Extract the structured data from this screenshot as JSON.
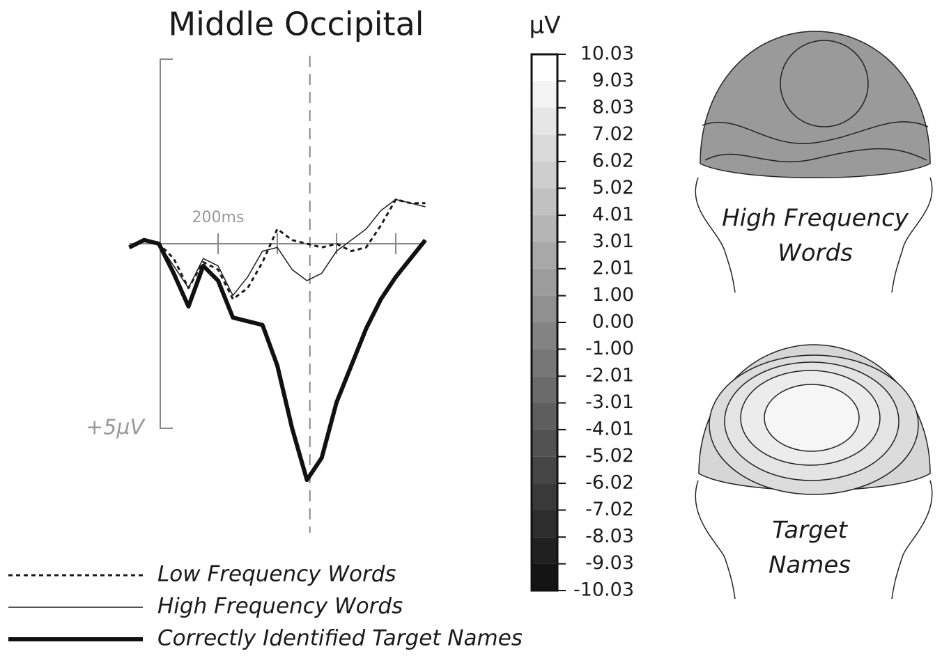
{
  "chart_data": [
    {
      "type": "line",
      "title": "Middle Occipital",
      "x": [
        -100,
        -50,
        0,
        50,
        100,
        150,
        200,
        250,
        300,
        350,
        400,
        450,
        500,
        550,
        600,
        650,
        700,
        750,
        800,
        850,
        900
      ],
      "xlim": [
        -100,
        900
      ],
      "xticks": [
        {
          "value": 200,
          "label": "200ms"
        }
      ],
      "minor_xticks": [
        400,
        600,
        800
      ],
      "ylim": [
        -5,
        5
      ],
      "yticks": [
        {
          "value": 5,
          "label": "+5µV"
        }
      ],
      "marker_x": 510,
      "series": [
        {
          "name": "Low Frequency Words",
          "color": "#1a1a1a",
          "line_style": "dotted",
          "values": [
            0.1,
            -0.1,
            0.0,
            0.4,
            1.2,
            0.5,
            0.7,
            1.5,
            1.2,
            0.5,
            -0.4,
            -0.1,
            0.0,
            0.1,
            0.0,
            0.2,
            0.1,
            -0.5,
            -1.2,
            -1.1,
            -1.1
          ]
        },
        {
          "name": "High Frequency Words",
          "color": "#1a1a1a",
          "line_style": "thin",
          "values": [
            0.1,
            -0.1,
            0.0,
            0.6,
            1.2,
            0.4,
            0.6,
            1.4,
            0.9,
            0.2,
            0.1,
            0.7,
            1.0,
            0.8,
            0.2,
            -0.1,
            -0.4,
            -0.9,
            -1.2,
            -1.1,
            -1.0
          ]
        },
        {
          "name": "Correctly Identified Target Names",
          "color": "#111111",
          "line_style": "thick",
          "values": [
            0.1,
            -0.1,
            0.0,
            0.8,
            1.7,
            0.6,
            1.0,
            2.0,
            2.1,
            2.2,
            3.3,
            5.0,
            6.4,
            5.8,
            4.3,
            3.3,
            2.3,
            1.5,
            0.9,
            0.4,
            -0.1
          ]
        }
      ]
    },
    {
      "type": "colorbar",
      "title": "µV",
      "colormap": [
        "#ffffff",
        "#141414"
      ],
      "ylim": [
        -10.03,
        10.03
      ],
      "yticks": [
        10.03,
        9.03,
        8.03,
        7.02,
        6.02,
        5.02,
        4.01,
        3.01,
        2.01,
        {
          "value": 1,
          "label": "1.00"
        },
        {
          "value": 0,
          "label": "0.00"
        },
        {
          "value": -1,
          "label": "-1.00"
        },
        -2.01,
        -3.01,
        -4.01,
        -5.02,
        -6.02,
        -7.02,
        -8.03,
        -9.03,
        -10.03
      ]
    }
  ],
  "topomaps": [
    {
      "label_lines": [
        "High Frequency",
        "Words"
      ]
    },
    {
      "label_lines": [
        "Target",
        "Names"
      ]
    }
  ]
}
